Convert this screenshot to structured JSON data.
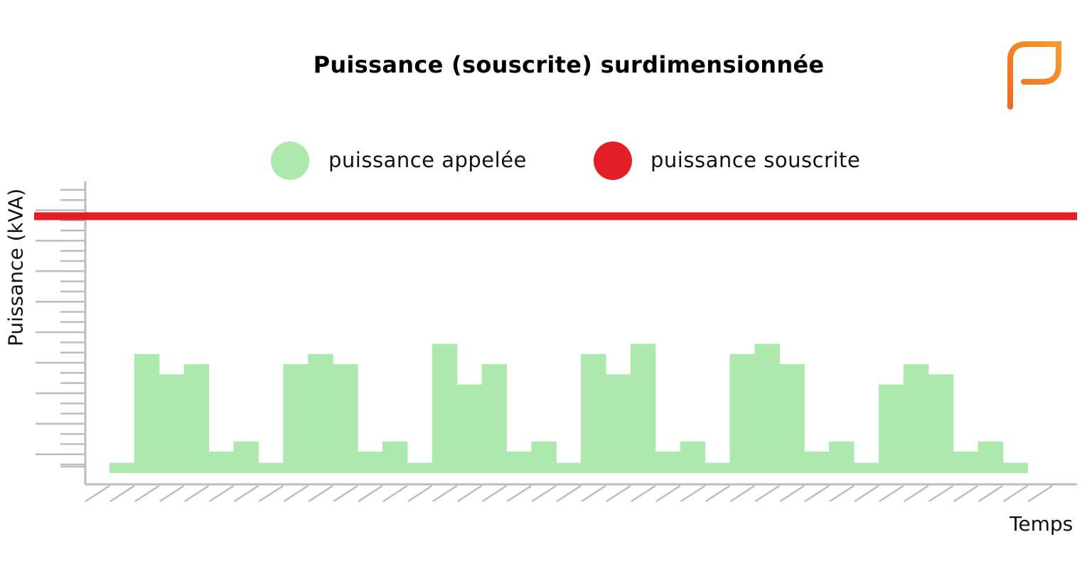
{
  "chart_data": {
    "type": "bar",
    "title": "Puissance (souscrite) surdimensionnée",
    "xlabel": "Temps",
    "ylabel": "Puissance (kVA)",
    "ylim": [
      -1.1,
      28.7
    ],
    "grid": false,
    "legend_position": "top-center",
    "series": [
      {
        "name": "puissance appelée",
        "color": "#ade8ad",
        "values": [
          1.0,
          11.7,
          9.7,
          10.7,
          2.1,
          3.1,
          1.0,
          10.7,
          11.7,
          10.7,
          2.1,
          3.1,
          1.0,
          12.7,
          8.7,
          10.7,
          2.1,
          3.1,
          1.0,
          11.7,
          9.7,
          12.7,
          2.1,
          3.1,
          1.0,
          11.7,
          12.7,
          10.7,
          2.1,
          3.1,
          1.0,
          8.7,
          10.7,
          9.7,
          2.1,
          3.1,
          1.0
        ]
      },
      {
        "name": "puissance souscrite",
        "color": "#e41e26",
        "type": "hline",
        "value": 25.2
      }
    ]
  },
  "logo": {
    "color": "#f07d22"
  }
}
